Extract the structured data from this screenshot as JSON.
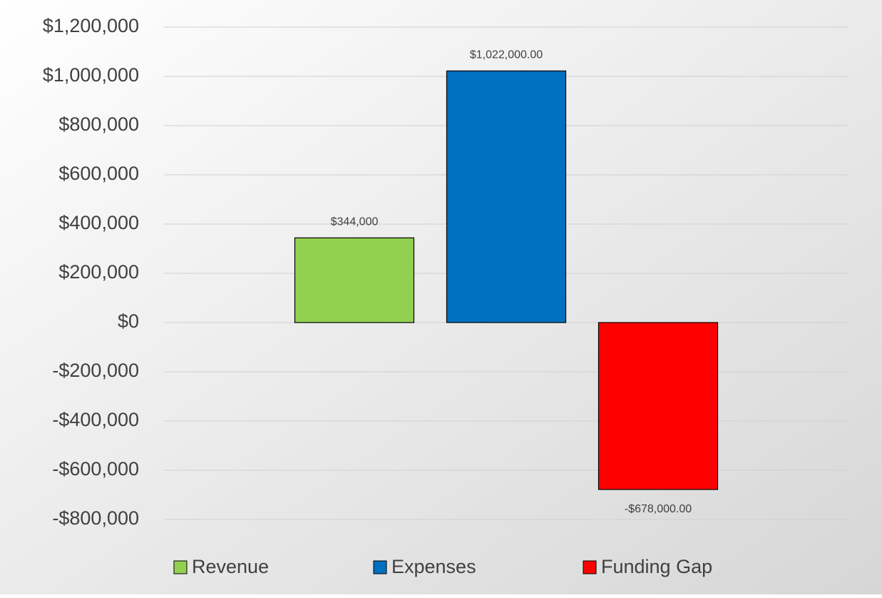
{
  "chart_data": {
    "type": "bar",
    "categories": [
      null
    ],
    "series": [
      {
        "name": "Revenue",
        "color": "#92d050",
        "values": [
          344000
        ],
        "value_labels": [
          "$344,000"
        ]
      },
      {
        "name": "Expenses",
        "color": "#0070c0",
        "values": [
          1022000
        ],
        "value_labels": [
          "$1,022,000.00"
        ]
      },
      {
        "name": "Funding Gap",
        "color": "#ff0000",
        "values": [
          -678000
        ],
        "value_labels": [
          "-$678,000.00"
        ]
      }
    ],
    "ylim": [
      -800000,
      1200000
    ],
    "yticks": [
      {
        "value": -800000,
        "label": "-$800,000"
      },
      {
        "value": -600000,
        "label": "-$600,000"
      },
      {
        "value": -400000,
        "label": "-$400,000"
      },
      {
        "value": -200000,
        "label": "-$200,000"
      },
      {
        "value": 0,
        "label": "$0"
      },
      {
        "value": 200000,
        "label": "$200,000"
      },
      {
        "value": 400000,
        "label": "$400,000"
      },
      {
        "value": 600000,
        "label": "$600,000"
      },
      {
        "value": 800000,
        "label": "$800,000"
      },
      {
        "value": 1000000,
        "label": "$1,000,000"
      },
      {
        "value": 1200000,
        "label": "$1,200,000"
      }
    ],
    "grid": true,
    "legend": "bottom"
  }
}
